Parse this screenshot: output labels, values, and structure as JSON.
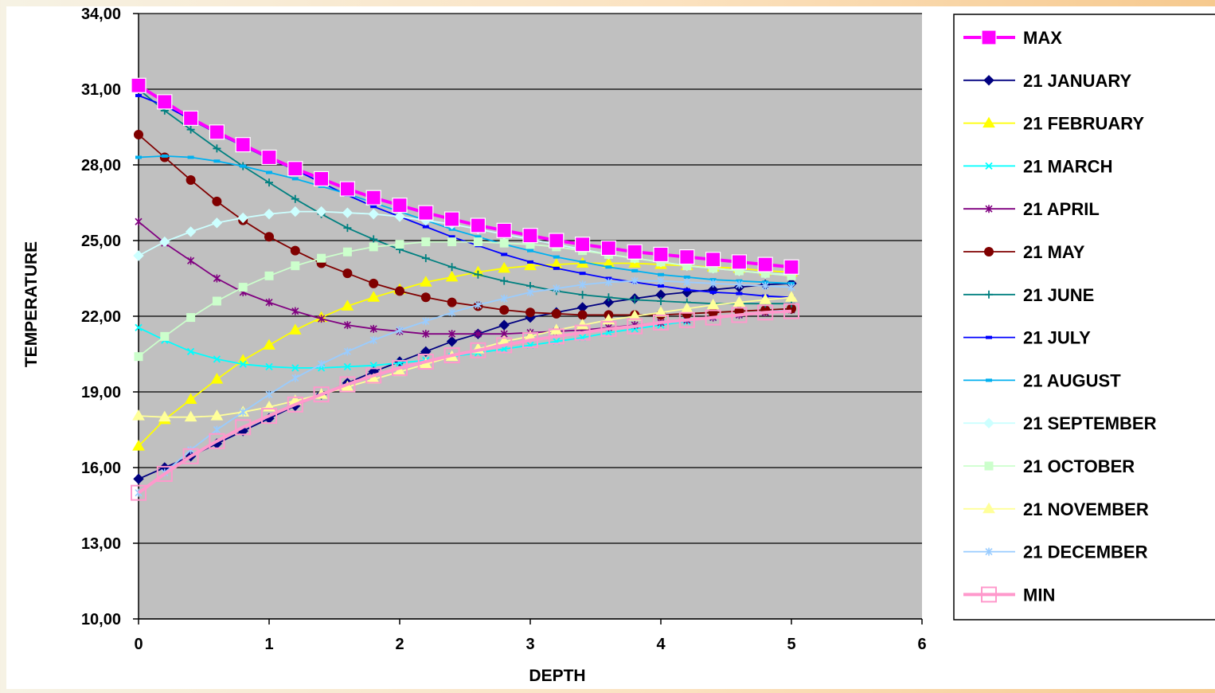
{
  "chart_data": {
    "type": "line",
    "xlabel": "DEPTH",
    "ylabel": "TEMPERATURE",
    "xlim": [
      0,
      6
    ],
    "ylim": [
      10,
      34
    ],
    "x_ticks": [
      "0",
      "1",
      "2",
      "3",
      "4",
      "5",
      "6"
    ],
    "y_ticks": [
      "10,00",
      "13,00",
      "16,00",
      "19,00",
      "22,00",
      "25,00",
      "28,00",
      "31,00",
      "34,00"
    ],
    "grid": "horizontal",
    "legend_position": "right",
    "x": [
      0,
      0.2,
      0.4,
      0.6,
      0.8,
      1.0,
      1.2,
      1.4,
      1.6,
      1.8,
      2.0,
      2.2,
      2.4,
      2.6,
      2.8,
      3.0,
      3.2,
      3.4,
      3.6,
      3.8,
      4.0,
      4.2,
      4.4,
      4.6,
      4.8,
      5.0
    ],
    "series": [
      {
        "name": "MAX",
        "color": "#ff00ff",
        "marker": "square-big",
        "values": [
          31.15,
          30.5,
          29.85,
          29.3,
          28.8,
          28.3,
          27.85,
          27.45,
          27.05,
          26.7,
          26.4,
          26.1,
          25.85,
          25.6,
          25.4,
          25.2,
          25.0,
          24.85,
          24.7,
          24.55,
          24.45,
          24.35,
          24.25,
          24.15,
          24.05,
          23.95
        ]
      },
      {
        "name": "21 JANUARY",
        "color": "#000080",
        "marker": "diamond",
        "values": [
          15.55,
          16.0,
          16.45,
          16.95,
          17.45,
          17.95,
          18.45,
          18.9,
          19.35,
          19.8,
          20.2,
          20.6,
          21.0,
          21.3,
          21.65,
          21.95,
          22.15,
          22.35,
          22.55,
          22.7,
          22.85,
          22.95,
          23.05,
          23.15,
          23.25,
          23.3
        ]
      },
      {
        "name": "21 FEBRUARY",
        "color": "#ffff00",
        "marker": "triangle",
        "values": [
          16.85,
          17.9,
          18.7,
          19.5,
          20.25,
          20.85,
          21.45,
          21.95,
          22.4,
          22.75,
          23.05,
          23.35,
          23.55,
          23.75,
          23.9,
          24.0,
          24.05,
          24.1,
          24.1,
          24.1,
          24.05,
          24.0,
          23.95,
          23.9,
          23.8,
          23.75
        ]
      },
      {
        "name": "21 MARCH",
        "color": "#00ffff",
        "marker": "x",
        "values": [
          21.55,
          21.05,
          20.6,
          20.3,
          20.1,
          20.0,
          19.95,
          19.95,
          20.0,
          20.05,
          20.15,
          20.25,
          20.4,
          20.55,
          20.7,
          20.85,
          21.0,
          21.15,
          21.35,
          21.5,
          21.65,
          21.8,
          21.95,
          22.05,
          22.2,
          22.3
        ]
      },
      {
        "name": "21 APRIL",
        "color": "#800080",
        "marker": "asterisk",
        "values": [
          25.75,
          24.9,
          24.2,
          23.5,
          22.95,
          22.55,
          22.2,
          21.9,
          21.65,
          21.5,
          21.4,
          21.3,
          21.3,
          21.3,
          21.3,
          21.35,
          21.4,
          21.45,
          21.55,
          21.65,
          21.75,
          21.85,
          21.95,
          22.05,
          22.15,
          22.25
        ]
      },
      {
        "name": "21 MAY",
        "color": "#800000",
        "marker": "circle",
        "values": [
          29.2,
          28.3,
          27.4,
          26.55,
          25.8,
          25.15,
          24.6,
          24.1,
          23.7,
          23.3,
          23.0,
          22.75,
          22.55,
          22.4,
          22.25,
          22.15,
          22.1,
          22.05,
          22.05,
          22.05,
          22.05,
          22.1,
          22.15,
          22.2,
          22.25,
          22.3
        ]
      },
      {
        "name": "21 JUNE",
        "color": "#008080",
        "marker": "plus",
        "values": [
          31.0,
          30.15,
          29.4,
          28.65,
          27.95,
          27.3,
          26.65,
          26.05,
          25.5,
          25.05,
          24.65,
          24.3,
          23.95,
          23.65,
          23.4,
          23.2,
          23.0,
          22.85,
          22.75,
          22.65,
          22.6,
          22.55,
          22.5,
          22.5,
          22.5,
          22.5
        ]
      },
      {
        "name": "21 JULY",
        "color": "#0000ff",
        "marker": "dash",
        "values": [
          30.75,
          30.35,
          29.8,
          29.25,
          28.75,
          28.25,
          27.8,
          27.3,
          26.8,
          26.35,
          25.95,
          25.55,
          25.15,
          24.8,
          24.45,
          24.15,
          23.9,
          23.7,
          23.5,
          23.35,
          23.2,
          23.05,
          22.95,
          22.9,
          22.8,
          22.75
        ]
      },
      {
        "name": "21 AUGUST",
        "color": "#00b0f0",
        "marker": "dash",
        "values": [
          28.3,
          28.35,
          28.3,
          28.15,
          27.95,
          27.7,
          27.45,
          27.15,
          26.85,
          26.5,
          26.15,
          25.8,
          25.45,
          25.15,
          24.85,
          24.6,
          24.35,
          24.15,
          23.95,
          23.8,
          23.65,
          23.55,
          23.45,
          23.4,
          23.35,
          23.3
        ]
      },
      {
        "name": "21 SEPTEMBER",
        "color": "#ccffff",
        "marker": "diamond",
        "values": [
          24.4,
          24.95,
          25.35,
          25.7,
          25.9,
          26.05,
          26.15,
          26.15,
          26.1,
          26.05,
          25.95,
          25.8,
          25.65,
          25.45,
          25.25,
          25.05,
          24.85,
          24.65,
          24.45,
          24.3,
          24.15,
          24.0,
          23.9,
          23.8,
          23.7,
          23.65
        ]
      },
      {
        "name": "21 OCTOBER",
        "color": "#ccffcc",
        "marker": "square",
        "values": [
          20.4,
          21.2,
          21.95,
          22.6,
          23.15,
          23.6,
          24.0,
          24.3,
          24.55,
          24.75,
          24.85,
          24.95,
          24.95,
          24.95,
          24.9,
          24.85,
          24.75,
          24.6,
          24.45,
          24.3,
          24.15,
          24.0,
          23.9,
          23.8,
          23.7,
          23.6
        ]
      },
      {
        "name": "21 NOVEMBER",
        "color": "#ffff99",
        "marker": "triangle",
        "values": [
          18.05,
          18.0,
          18.0,
          18.05,
          18.2,
          18.4,
          18.65,
          18.9,
          19.2,
          19.5,
          19.8,
          20.1,
          20.4,
          20.7,
          21.0,
          21.2,
          21.45,
          21.65,
          21.85,
          22.0,
          22.15,
          22.3,
          22.45,
          22.55,
          22.65,
          22.75
        ]
      },
      {
        "name": "21 DECEMBER",
        "color": "#99ccff",
        "marker": "asterisk",
        "values": [
          15.0,
          15.8,
          16.7,
          17.5,
          18.2,
          18.9,
          19.55,
          20.1,
          20.6,
          21.05,
          21.45,
          21.8,
          22.15,
          22.45,
          22.7,
          22.95,
          23.1,
          23.25,
          23.35,
          23.4,
          23.4,
          23.35,
          23.3,
          23.25,
          23.2,
          23.15
        ]
      },
      {
        "name": "MIN",
        "color": "#ff99cc",
        "marker": "square-big-hollow",
        "values": [
          15.0,
          15.75,
          16.45,
          17.05,
          17.6,
          18.05,
          18.5,
          18.9,
          19.3,
          19.65,
          19.95,
          20.2,
          20.45,
          20.65,
          20.85,
          21.05,
          21.2,
          21.35,
          21.5,
          21.6,
          21.75,
          21.85,
          21.95,
          22.05,
          22.15,
          22.2
        ]
      }
    ]
  }
}
